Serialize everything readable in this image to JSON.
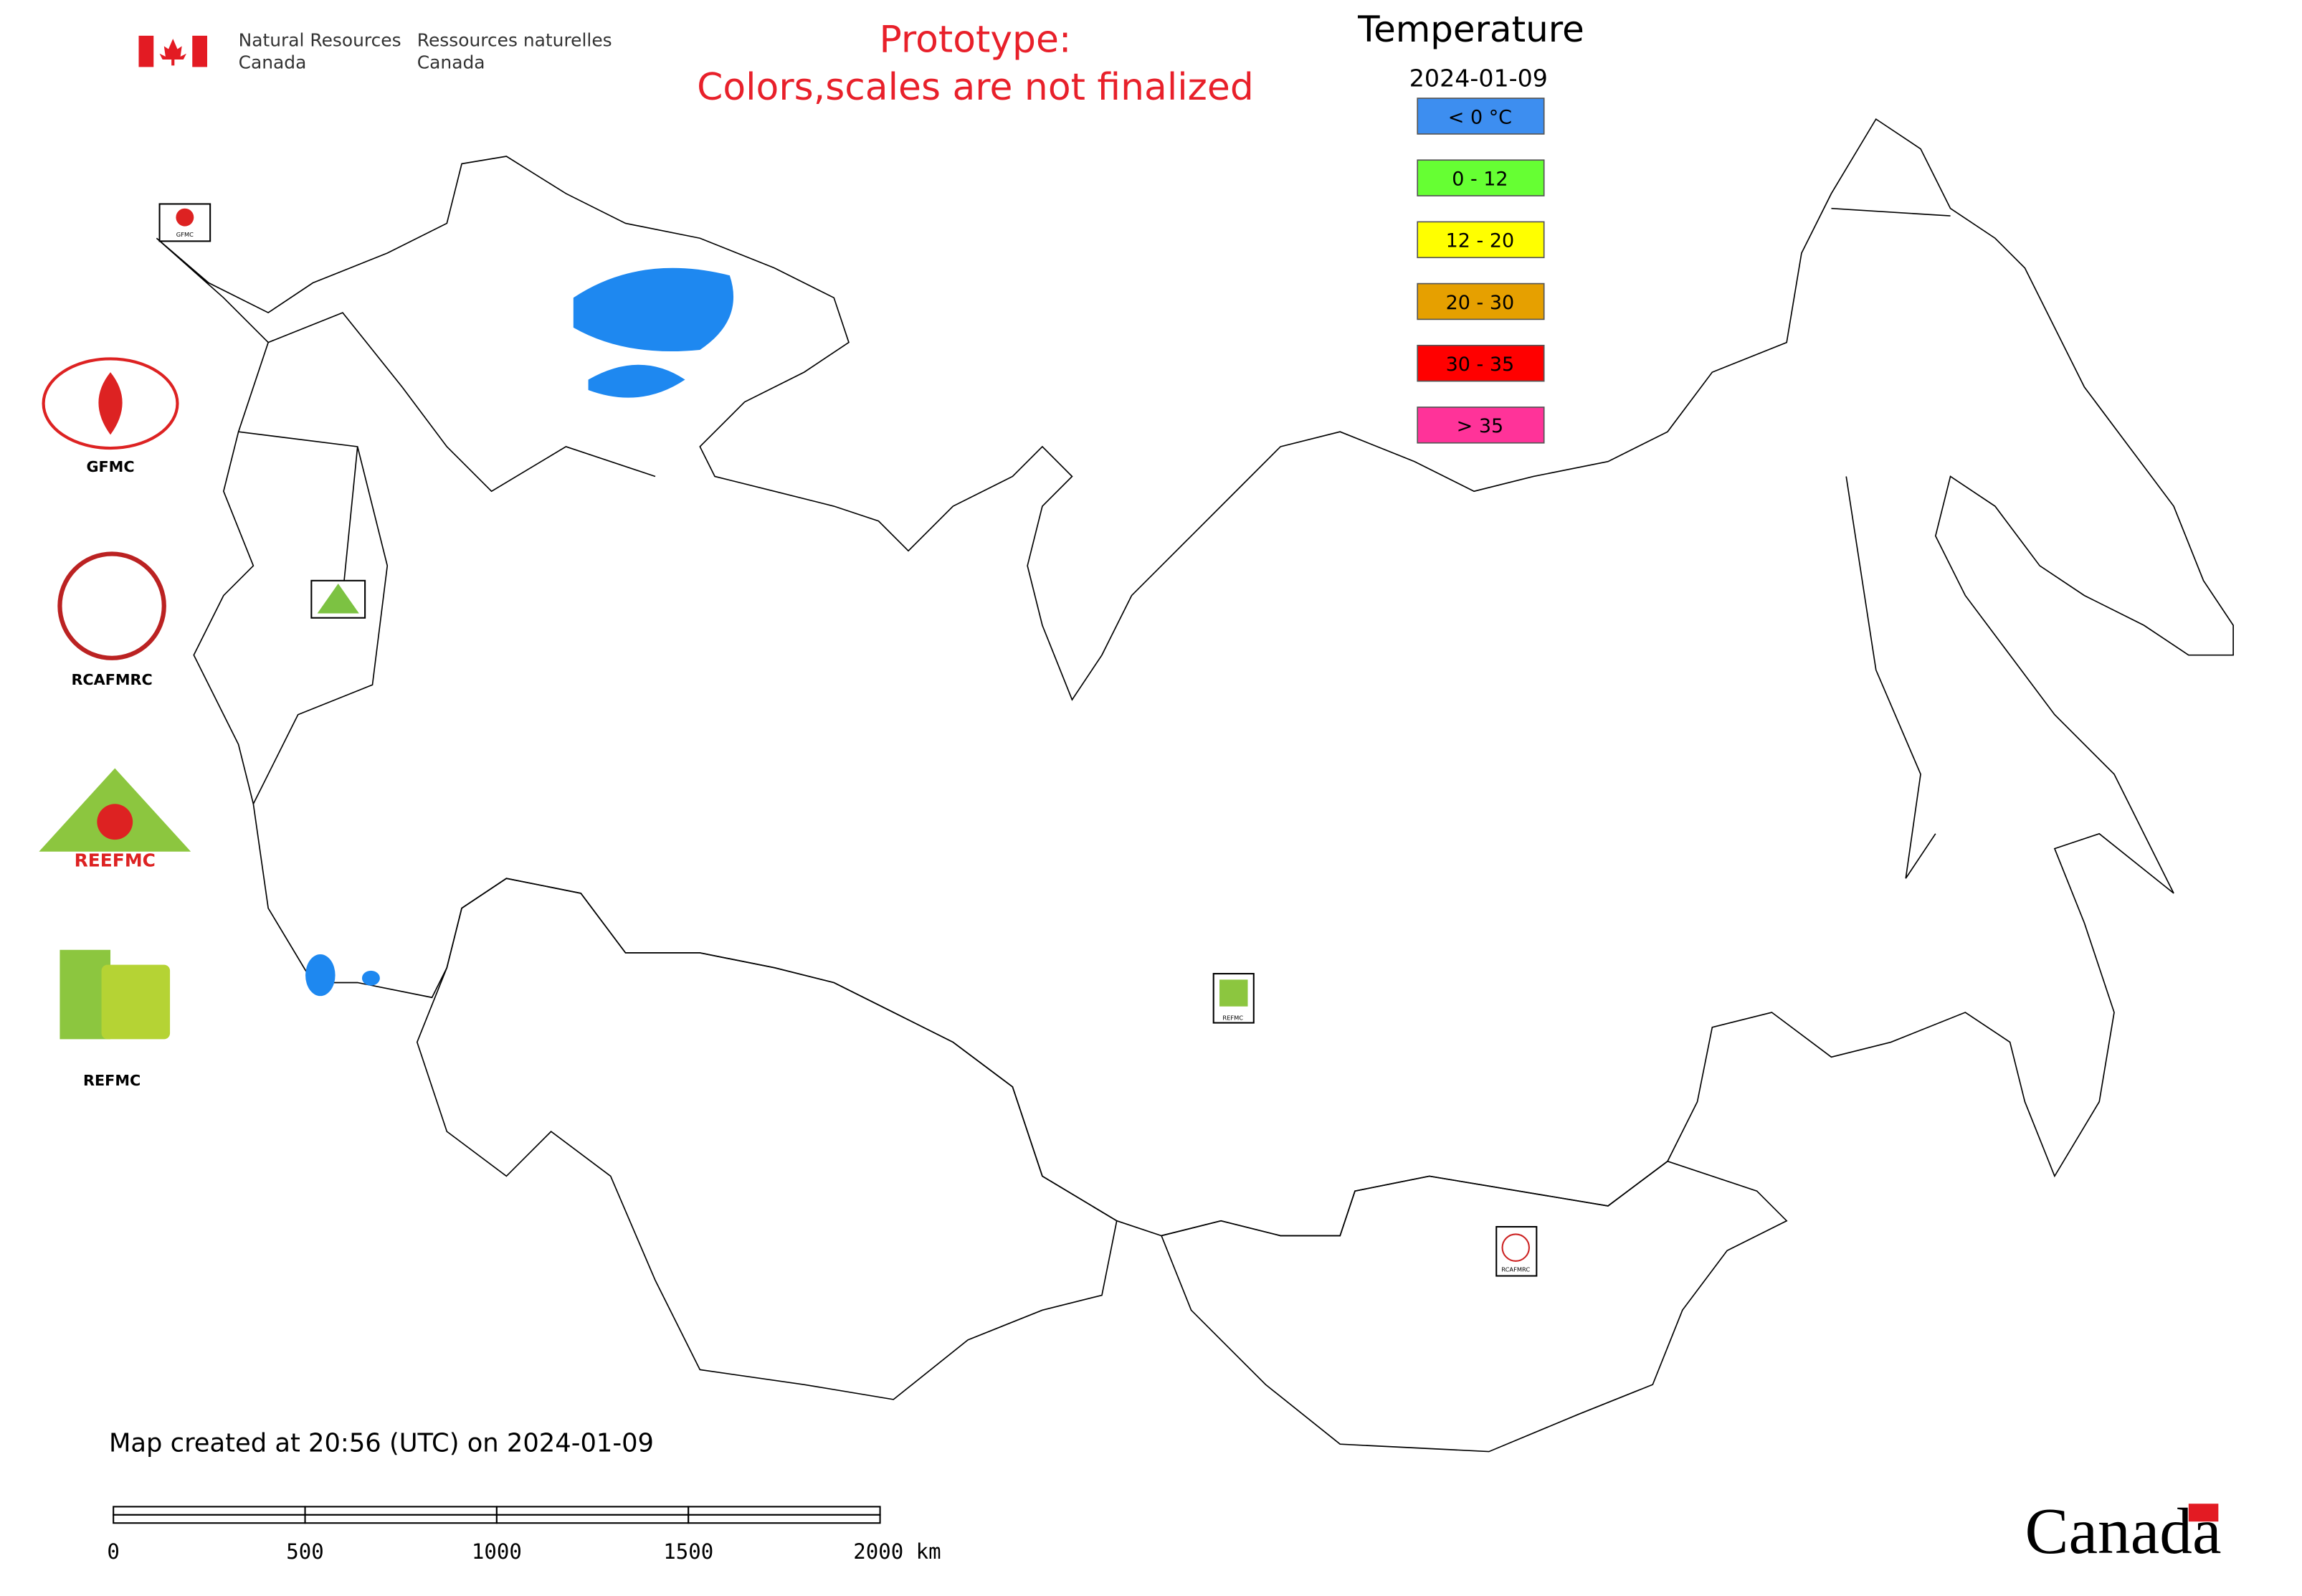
{
  "header": {
    "department_en_line1": "Natural Resources",
    "department_en_line2": "Canada",
    "department_fr_line1": "Ressources naturelles",
    "department_fr_line2": "Canada"
  },
  "notice": {
    "line1": "Prototype:",
    "line2": "Colors,scales are not finalized"
  },
  "legend": {
    "title": "Temperature",
    "date": "2024-01-09",
    "items": [
      {
        "label": "< 0 °C",
        "color": "#3d8ef0"
      },
      {
        "label": "0 - 12",
        "color": "#66ff33"
      },
      {
        "label": "12 - 20",
        "color": "#ffff00"
      },
      {
        "label": "20 - 30",
        "color": "#e6a000"
      },
      {
        "label": "30 - 35",
        "color": "#ff0000"
      },
      {
        "label": "> 35",
        "color": "#ff3399"
      }
    ]
  },
  "logos": [
    "GFMC",
    "RCAFMRC",
    "REEFMC",
    "REFMC"
  ],
  "footer": {
    "created": "Map created at 20:56 (UTC) on 2024-01-09",
    "scale_labels": [
      "0",
      "500",
      "1000",
      "1500",
      "2000 km"
    ],
    "wordmark": "Canada"
  }
}
